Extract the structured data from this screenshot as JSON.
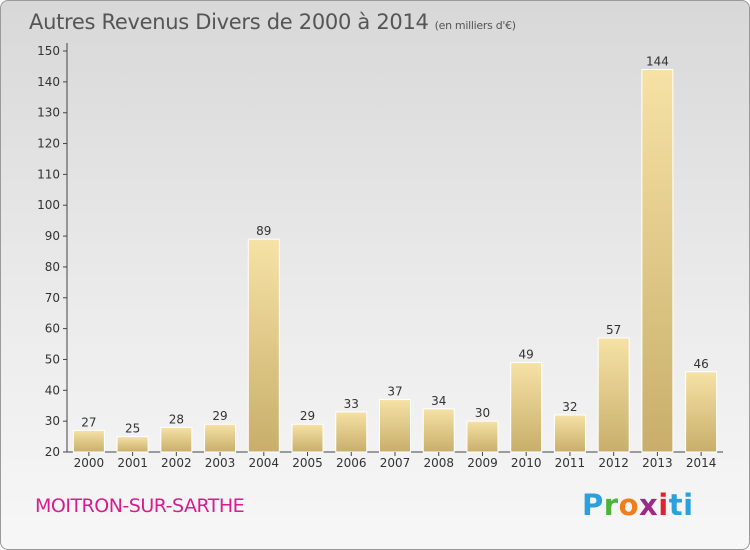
{
  "header": {
    "title": "Autres Revenus Divers de 2000 à 2014",
    "subtitle": "(en milliers d'€)"
  },
  "footer": {
    "city": "MOITRON-SUR-SARTHE",
    "brand": [
      "P",
      "r",
      "o",
      "x",
      "i",
      "t",
      "i"
    ]
  },
  "colors": {
    "bar_light": "#f6e2a6",
    "bar_dark": "#c8ae6a",
    "axis": "#444444",
    "grid": "#666666",
    "city": "#d81c8f"
  },
  "chart_data": {
    "type": "bar",
    "title": "Autres Revenus Divers de 2000 à 2014",
    "subtitle": "(en milliers d'€)",
    "categories": [
      "2000",
      "2001",
      "2002",
      "2003",
      "2004",
      "2005",
      "2006",
      "2007",
      "2008",
      "2009",
      "2010",
      "2011",
      "2012",
      "2013",
      "2014"
    ],
    "values": [
      27,
      25,
      28,
      29,
      89,
      29,
      33,
      37,
      34,
      30,
      49,
      32,
      57,
      144,
      46
    ],
    "ylim": [
      20,
      150
    ],
    "yticks": [
      20,
      30,
      40,
      50,
      60,
      70,
      80,
      90,
      100,
      110,
      120,
      130,
      140,
      150
    ],
    "data_labels": true,
    "grid": false
  }
}
